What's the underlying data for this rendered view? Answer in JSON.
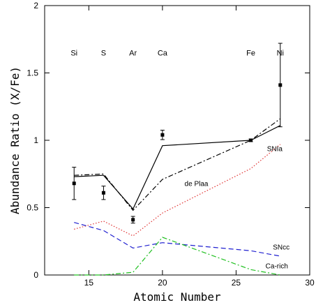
{
  "chart_data": {
    "type": "line",
    "title": "",
    "xlabel": "Atomic Number",
    "ylabel": "Abundance Ratio (X/Fe)",
    "xlim": [
      12,
      30
    ],
    "ylim": [
      0,
      2
    ],
    "grid": false,
    "x_ticks": [
      {
        "value": 15,
        "label": "15"
      },
      {
        "value": 20,
        "label": "20"
      },
      {
        "value": 25,
        "label": "25"
      },
      {
        "value": 30,
        "label": "30"
      }
    ],
    "y_ticks": [
      {
        "value": 0,
        "label": "0"
      },
      {
        "value": 0.5,
        "label": "0.5"
      },
      {
        "value": 1,
        "label": "1"
      },
      {
        "value": 1.5,
        "label": "1.5"
      },
      {
        "value": 2,
        "label": "2"
      }
    ],
    "element_labels": [
      {
        "text": "Si",
        "x": 14
      },
      {
        "text": "S",
        "x": 16
      },
      {
        "text": "Ar",
        "x": 18
      },
      {
        "text": "Ca",
        "x": 20
      },
      {
        "text": "Fe",
        "x": 26
      },
      {
        "text": "Ni",
        "x": 28
      }
    ],
    "element_label_y": 1.63,
    "observed": {
      "x": [
        14,
        16,
        18,
        20,
        26,
        28
      ],
      "y": [
        0.68,
        0.61,
        0.41,
        1.04,
        1.0,
        1.41
      ],
      "err": [
        0.12,
        0.05,
        0.025,
        0.035,
        0.01,
        0.31
      ]
    },
    "series": [
      {
        "name": "",
        "style": "solid",
        "color": "#000000",
        "x": [
          14,
          16,
          18,
          20,
          26,
          28
        ],
        "y": [
          0.73,
          0.74,
          0.49,
          0.96,
          1.0,
          1.11
        ]
      },
      {
        "name": "de Plaa",
        "style": "dashdot",
        "color": "#000000",
        "x": [
          14,
          16,
          18,
          20,
          26,
          28
        ],
        "y": [
          0.74,
          0.75,
          0.48,
          0.71,
          1.0,
          1.16
        ]
      },
      {
        "name": "SNIa",
        "style": "dotted",
        "color": "#e03030",
        "x": [
          14,
          16,
          18,
          20,
          26,
          28
        ],
        "y": [
          0.34,
          0.4,
          0.29,
          0.46,
          0.79,
          0.97
        ]
      },
      {
        "name": "SNcc",
        "style": "dashed",
        "color": "#2020d0",
        "x": [
          14,
          16,
          18,
          20,
          26,
          28
        ],
        "y": [
          0.39,
          0.33,
          0.2,
          0.24,
          0.18,
          0.14
        ]
      },
      {
        "name": "Ca-rich",
        "style": "dashdot",
        "color": "#20c020",
        "x": [
          14,
          16,
          18,
          20,
          26,
          28
        ],
        "y": [
          0.0,
          0.0,
          0.02,
          0.28,
          0.04,
          0.0
        ]
      }
    ],
    "series_labels": [
      {
        "text": "SNIa",
        "x": 27.1,
        "y": 0.92
      },
      {
        "text": "de Plaa",
        "x": 21.5,
        "y": 0.66
      },
      {
        "text": "SNcc",
        "x": 27.5,
        "y": 0.19
      },
      {
        "text": "Ca-rich",
        "x": 27.0,
        "y": 0.05
      }
    ]
  }
}
